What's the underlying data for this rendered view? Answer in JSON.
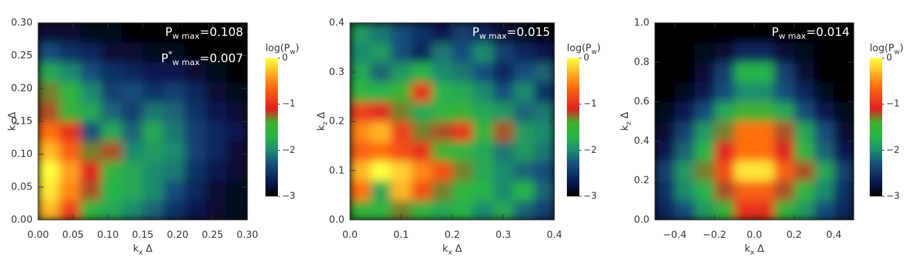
{
  "chart_data": [
    {
      "type": "heatmap",
      "annotations": [
        {
          "main": "P",
          "sub": "w max",
          "rest": "=0.108"
        },
        {
          "main": "P",
          "sup": "*",
          "sub": "w max",
          "rest": "=0.007"
        }
      ],
      "xlabel": {
        "main": "k",
        "sub": "x",
        "rest": " Δ"
      },
      "ylabel": {
        "main": "k",
        "sub": "z",
        "rest": " Δ"
      },
      "xlim": [
        0,
        0.3
      ],
      "ylim": [
        0,
        0.3
      ],
      "xticks": [
        {
          "value": 0,
          "label": "0.00"
        },
        {
          "value": 0.05,
          "label": "0.05"
        },
        {
          "value": 0.1,
          "label": "0.10"
        },
        {
          "value": 0.15,
          "label": "0.15"
        },
        {
          "value": 0.2,
          "label": "0.20"
        },
        {
          "value": 0.25,
          "label": "0.25"
        },
        {
          "value": 0.3,
          "label": "0.30"
        }
      ],
      "yticks": [
        {
          "value": 0,
          "label": "0.00"
        },
        {
          "value": 0.05,
          "label": "0.05"
        },
        {
          "value": 0.1,
          "label": "0.10"
        },
        {
          "value": 0.15,
          "label": "0.15"
        },
        {
          "value": 0.2,
          "label": "0.20"
        },
        {
          "value": 0.25,
          "label": "0.25"
        },
        {
          "value": 0.3,
          "label": "0.30"
        }
      ],
      "x": [
        0.015,
        0.045,
        0.075,
        0.105,
        0.135,
        0.165,
        0.195,
        0.225,
        0.255,
        0.285
      ],
      "y": [
        0.015,
        0.045,
        0.075,
        0.105,
        0.135,
        0.165,
        0.195,
        0.225,
        0.255,
        0.285
      ],
      "z": [
        [
          -0.3,
          -0.9,
          -1.6,
          -1.8,
          -2.0,
          -2.2,
          -2.5,
          -2.7,
          -2.8,
          -2.9
        ],
        [
          -0.1,
          -0.5,
          -1.2,
          -1.7,
          -1.8,
          -2.0,
          -2.3,
          -2.6,
          -2.8,
          -2.9
        ],
        [
          0,
          -0.4,
          -1.1,
          -1.6,
          -1.8,
          -2.0,
          -2.1,
          -2.5,
          -2.7,
          -2.8
        ],
        [
          -0.3,
          -0.7,
          -1.3,
          -1.2,
          -2.0,
          -1.9,
          -2.0,
          -2.4,
          -2.6,
          -2.8
        ],
        [
          -0.6,
          -1.0,
          -2.3,
          -1.8,
          -2.2,
          -1.8,
          -2.1,
          -2.4,
          -2.6,
          -2.7
        ],
        [
          -1.2,
          -1.5,
          -1.8,
          -2.2,
          -2.4,
          -2.1,
          -2.2,
          -2.5,
          -2.7,
          -2.8
        ],
        [
          -1.3,
          -1.6,
          -2.0,
          -2.4,
          -2.3,
          -2.5,
          -2.4,
          -2.6,
          -2.8,
          -2.9
        ],
        [
          -1.8,
          -2.0,
          -2.3,
          -2.5,
          -2.6,
          -2.7,
          -2.7,
          -2.8,
          -2.9,
          -3.0
        ],
        [
          -2.3,
          -2.5,
          -2.6,
          -2.8,
          -2.8,
          -2.9,
          -2.9,
          -3.0,
          -3.0,
          -3.0
        ],
        [
          -2.8,
          -2.8,
          -2.9,
          -2.9,
          -3.0,
          -3.0,
          -3.0,
          -3.0,
          -3.0,
          -3.0
        ]
      ],
      "colorbar": {
        "label": {
          "main": "log(P",
          "sub": "w",
          "rest": ")"
        },
        "lim": [
          -3,
          0
        ],
        "ticks": [
          0,
          {
            "value": -1,
            "label": "−1"
          },
          {
            "value": -2,
            "label": "−2"
          },
          {
            "value": -3,
            "label": "−3"
          }
        ],
        "stops": [
          {
            "value": -3,
            "color": "#000000"
          },
          {
            "value": -2.7,
            "color": "#0a1850"
          },
          {
            "value": -2.3,
            "color": "#184e7a"
          },
          {
            "value": -2.0,
            "color": "#1e8c6e"
          },
          {
            "value": -1.7,
            "color": "#28b448"
          },
          {
            "value": -1.4,
            "color": "#40b030"
          },
          {
            "value": -1.1,
            "color": "#e02020"
          },
          {
            "value": -0.6,
            "color": "#ff7010"
          },
          {
            "value": 0,
            "color": "#ffff40"
          }
        ]
      }
    },
    {
      "type": "heatmap",
      "annotations": [
        {
          "main": "P",
          "sub": "w max",
          "rest": "=0.015"
        }
      ],
      "xlabel": {
        "main": "k",
        "sub": "x",
        "rest": " Δ"
      },
      "ylabel": {
        "main": "k",
        "sub": "z",
        "rest": " Δ"
      },
      "xlim": [
        0,
        0.4
      ],
      "ylim": [
        0,
        0.4
      ],
      "xticks": [
        {
          "value": 0,
          "label": "0.0"
        },
        0.1,
        0.2,
        0.3,
        0.4
      ],
      "yticks": [
        {
          "value": 0,
          "label": "0.0"
        },
        0.1,
        0.2,
        0.3,
        0.4
      ],
      "x": [
        0.02,
        0.06,
        0.1,
        0.14,
        0.18,
        0.22,
        0.26,
        0.3,
        0.34,
        0.38
      ],
      "y": [
        0.02,
        0.06,
        0.1,
        0.14,
        0.18,
        0.22,
        0.26,
        0.3,
        0.34,
        0.38
      ],
      "z": [
        [
          -1.5,
          -1.6,
          -1.3,
          -1.6,
          -1.8,
          -1.7,
          -2.0,
          -1.8,
          -2.2,
          -2.4
        ],
        [
          -0.6,
          -1.8,
          -0.3,
          -0.8,
          -1.3,
          -1.6,
          -1.7,
          -2.0,
          -1.7,
          -2.2
        ],
        [
          -0.3,
          0,
          -0.2,
          -0.5,
          -0.8,
          -1.3,
          -1.8,
          -2.0,
          -2.2,
          -2.3
        ],
        [
          -0.7,
          -0.6,
          -0.8,
          -1.0,
          -1.4,
          -1.6,
          -1.8,
          -2.1,
          -1.9,
          -2.1
        ],
        [
          -0.5,
          -0.3,
          -0.9,
          -1.3,
          -1.2,
          -1.0,
          -1.6,
          -1.2,
          -1.9,
          -2.0
        ],
        [
          -0.9,
          -1.1,
          -1.3,
          -1.8,
          -1.6,
          -1.5,
          -1.8,
          -1.9,
          -2.2,
          -2.1
        ],
        [
          -1.6,
          -1.7,
          -1.4,
          -1.0,
          -1.7,
          -1.8,
          -2.0,
          -2.3,
          -2.0,
          -2.5
        ],
        [
          -1.8,
          -2.2,
          -1.9,
          -1.7,
          -2.0,
          -2.1,
          -2.3,
          -2.6,
          -2.3,
          -2.2
        ],
        [
          -2.0,
          -1.9,
          -2.3,
          -2.6,
          -2.1,
          -2.3,
          -2.0,
          -2.4,
          -2.6,
          -2.7
        ],
        [
          -1.9,
          -2.1,
          -2.3,
          -2.5,
          -2.7,
          -2.4,
          -2.6,
          -2.8,
          -2.9,
          -3.0
        ]
      ],
      "colorbar": {
        "label": {
          "main": "log(P",
          "sub": "w",
          "rest": ")"
        },
        "lim": [
          -3,
          0
        ],
        "ticks": [
          0,
          {
            "value": -1,
            "label": "−1"
          },
          {
            "value": -2,
            "label": "−2"
          },
          {
            "value": -3,
            "label": "−3"
          }
        ],
        "stops": [
          {
            "value": -3,
            "color": "#000000"
          },
          {
            "value": -2.7,
            "color": "#0a1850"
          },
          {
            "value": -2.3,
            "color": "#184e7a"
          },
          {
            "value": -2.0,
            "color": "#1e8c6e"
          },
          {
            "value": -1.7,
            "color": "#28b448"
          },
          {
            "value": -1.4,
            "color": "#40b030"
          },
          {
            "value": -1.1,
            "color": "#e02020"
          },
          {
            "value": -0.6,
            "color": "#ff7010"
          },
          {
            "value": 0,
            "color": "#ffff40"
          }
        ]
      }
    },
    {
      "type": "heatmap",
      "annotations": [
        {
          "main": "P",
          "sub": "w max",
          "rest": "=0.014"
        }
      ],
      "xlabel": {
        "main": "k",
        "sub": "x",
        "rest": " Δ"
      },
      "ylabel": {
        "main": "k",
        "sub": "z",
        "rest": " Δ"
      },
      "xlim": [
        -0.5,
        0.5
      ],
      "ylim": [
        0,
        1
      ],
      "xticks": [
        {
          "value": -0.4,
          "label": "−0.4"
        },
        {
          "value": -0.2,
          "label": "−0.2"
        },
        {
          "value": 0,
          "label": "0.0"
        },
        0.2,
        0.4
      ],
      "yticks": [
        {
          "value": 0,
          "label": "0.0"
        },
        0.2,
        0.4,
        0.6,
        0.8,
        {
          "value": 1,
          "label": "1.0"
        }
      ],
      "x": [
        -0.45,
        -0.35,
        -0.25,
        -0.15,
        -0.05,
        0.05,
        0.15,
        0.25,
        0.35,
        0.45
      ],
      "y": [
        0.05,
        0.15,
        0.25,
        0.35,
        0.45,
        0.55,
        0.65,
        0.75,
        0.85,
        0.95
      ],
      "z": [
        [
          -2.6,
          -2.3,
          -1.9,
          -1.5,
          -1.0,
          -1.0,
          -1.5,
          -1.9,
          -2.3,
          -2.6
        ],
        [
          -2.5,
          -2.0,
          -1.7,
          -1.2,
          -0.7,
          -0.7,
          -1.2,
          -1.6,
          -2.0,
          -2.5
        ],
        [
          -2.4,
          -1.9,
          -1.3,
          -0.8,
          -0.1,
          -0.1,
          -0.7,
          -1.2,
          -1.8,
          -2.4
        ],
        [
          -2.7,
          -2.2,
          -1.7,
          -1.1,
          -0.6,
          -0.6,
          -1.1,
          -1.6,
          -2.2,
          -2.7
        ],
        [
          -2.8,
          -2.4,
          -1.9,
          -1.3,
          -0.6,
          -0.6,
          -1.2,
          -1.8,
          -2.3,
          -2.8
        ],
        [
          -2.9,
          -2.7,
          -2.3,
          -1.8,
          -1.4,
          -1.4,
          -1.8,
          -2.3,
          -2.7,
          -2.9
        ],
        [
          -3.0,
          -2.9,
          -2.7,
          -2.3,
          -2.0,
          -2.0,
          -2.3,
          -2.6,
          -2.9,
          -3.0
        ],
        [
          -3.0,
          -3.0,
          -2.8,
          -2.4,
          -1.7,
          -1.7,
          -2.4,
          -2.8,
          -3.0,
          -3.0
        ],
        [
          -3.0,
          -3.0,
          -2.9,
          -2.8,
          -2.6,
          -2.6,
          -2.8,
          -2.9,
          -3.0,
          -3.0
        ],
        [
          -3.0,
          -3.0,
          -3.0,
          -3.0,
          -3.0,
          -3.0,
          -3.0,
          -3.0,
          -3.0,
          -3.0
        ]
      ],
      "colorbar": {
        "label": {
          "main": "log(P",
          "sub": "w",
          "rest": ")"
        },
        "lim": [
          -3,
          0
        ],
        "ticks": [
          0,
          {
            "value": -1,
            "label": "−1"
          },
          {
            "value": -2,
            "label": "−2"
          },
          {
            "value": -3,
            "label": "−3"
          }
        ],
        "stops": [
          {
            "value": -3,
            "color": "#000000"
          },
          {
            "value": -2.7,
            "color": "#0a1850"
          },
          {
            "value": -2.3,
            "color": "#184e7a"
          },
          {
            "value": -2.0,
            "color": "#1e8c6e"
          },
          {
            "value": -1.7,
            "color": "#28b448"
          },
          {
            "value": -1.4,
            "color": "#40b030"
          },
          {
            "value": -1.1,
            "color": "#e02020"
          },
          {
            "value": -0.6,
            "color": "#ff7010"
          },
          {
            "value": 0,
            "color": "#ffff40"
          }
        ]
      }
    }
  ]
}
